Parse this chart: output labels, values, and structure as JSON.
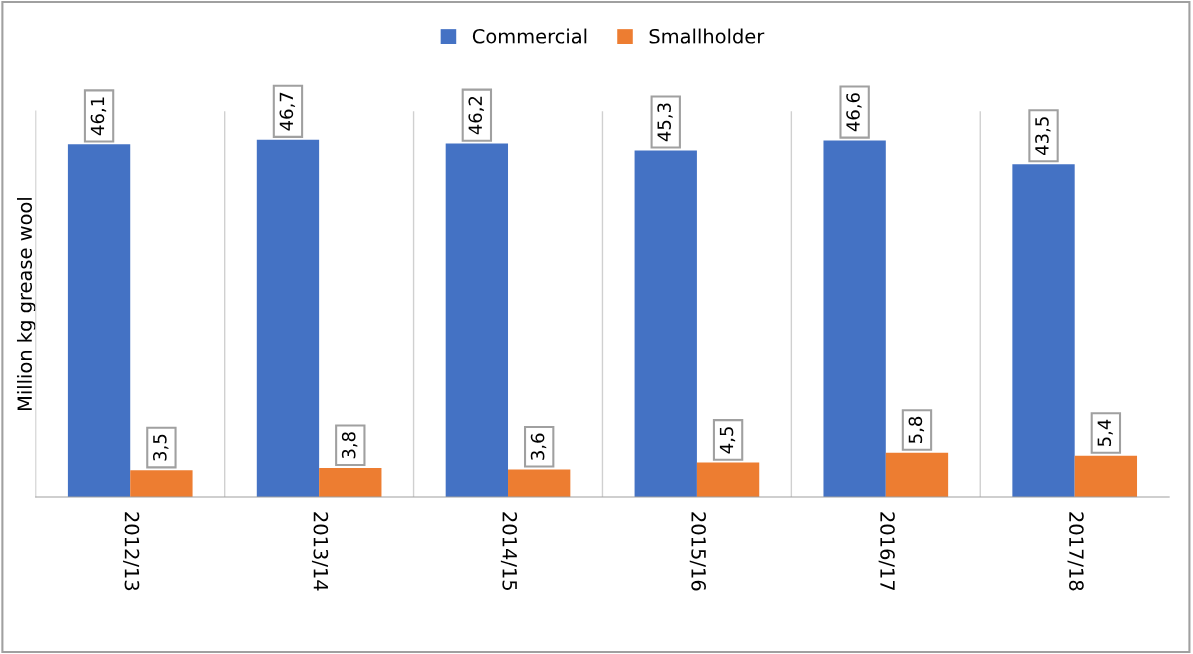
{
  "chart_data": {
    "type": "bar",
    "ylabel": "Million kg grease wool",
    "categories": [
      "2012/13",
      "2013/14",
      "2014/15",
      "2015/16",
      "2016/17",
      "2017/18"
    ],
    "series": [
      {
        "name": "Commercial",
        "color": "#4472c4",
        "values": [
          46.1,
          46.7,
          46.2,
          45.3,
          46.6,
          43.5
        ],
        "value_labels": [
          "46,1",
          "46,7",
          "46,2",
          "45,3",
          "46,6",
          "43,5"
        ]
      },
      {
        "name": "Smallholder",
        "color": "#ed7d31",
        "values": [
          3.5,
          3.8,
          3.6,
          4.5,
          5.8,
          5.4
        ],
        "value_labels": [
          "3,5",
          "3,8",
          "3,6",
          "4,5",
          "5,8",
          "5,4"
        ]
      }
    ],
    "grid": "x",
    "legend": "top"
  }
}
